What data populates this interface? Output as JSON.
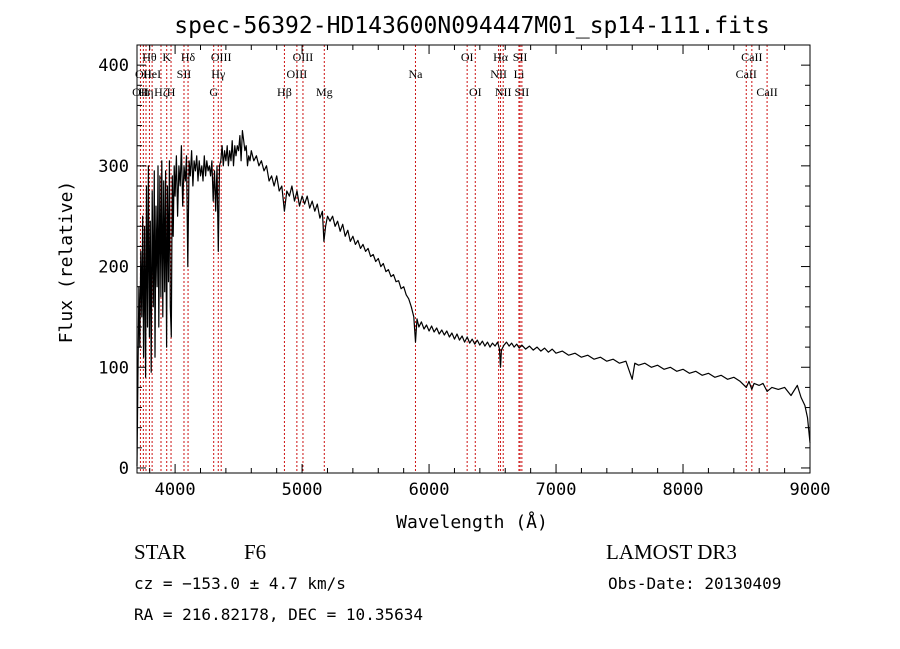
{
  "chart_data": {
    "type": "line",
    "title": "spec-56392-HD143600N094447M01_sp14-111.fits",
    "xlabel": "Wavelength (Å)",
    "ylabel": "Flux (relative)",
    "xlim": [
      3700,
      9000
    ],
    "ylim": [
      -5,
      420
    ],
    "xticks": [
      4000,
      5000,
      6000,
      7000,
      8000,
      9000
    ],
    "yticks": [
      0,
      100,
      200,
      300,
      400
    ],
    "grid": false,
    "series": [
      {
        "name": "flux",
        "points": [
          [
            3700,
            2
          ],
          [
            3705,
            60
          ],
          [
            3715,
            180
          ],
          [
            3722,
            120
          ],
          [
            3730,
            215
          ],
          [
            3738,
            150
          ],
          [
            3745,
            250
          ],
          [
            3752,
            110
          ],
          [
            3760,
            240
          ],
          [
            3768,
            90
          ],
          [
            3775,
            280
          ],
          [
            3783,
            140
          ],
          [
            3790,
            300
          ],
          [
            3798,
            130
          ],
          [
            3805,
            245
          ],
          [
            3812,
            95
          ],
          [
            3820,
            275
          ],
          [
            3828,
            160
          ],
          [
            3836,
            295
          ],
          [
            3842,
            110
          ],
          [
            3850,
            260
          ],
          [
            3858,
            180
          ],
          [
            3865,
            300
          ],
          [
            3872,
            140
          ],
          [
            3880,
            290
          ],
          [
            3888,
            170
          ],
          [
            3895,
            305
          ],
          [
            3903,
            150
          ],
          [
            3910,
            285
          ],
          [
            3918,
            175
          ],
          [
            3925,
            295
          ],
          [
            3933,
            120
          ],
          [
            3940,
            280
          ],
          [
            3948,
            185
          ],
          [
            3955,
            305
          ],
          [
            3962,
            160
          ],
          [
            3970,
            130
          ],
          [
            3978,
            290
          ],
          [
            3985,
            230
          ],
          [
            3993,
            300
          ],
          [
            4000,
            270
          ],
          [
            4010,
            310
          ],
          [
            4020,
            250
          ],
          [
            4030,
            300
          ],
          [
            4040,
            280
          ],
          [
            4050,
            320
          ],
          [
            4060,
            260
          ],
          [
            4070,
            300
          ],
          [
            4080,
            285
          ],
          [
            4090,
            310
          ],
          [
            4100,
            200
          ],
          [
            4110,
            305
          ],
          [
            4120,
            290
          ],
          [
            4130,
            315
          ],
          [
            4140,
            280
          ],
          [
            4150,
            305
          ],
          [
            4160,
            295
          ],
          [
            4170,
            310
          ],
          [
            4180,
            285
          ],
          [
            4190,
            305
          ],
          [
            4200,
            290
          ],
          [
            4210,
            300
          ],
          [
            4220,
            285
          ],
          [
            4230,
            310
          ],
          [
            4240,
            290
          ],
          [
            4250,
            305
          ],
          [
            4260,
            295
          ],
          [
            4270,
            300
          ],
          [
            4280,
            290
          ],
          [
            4290,
            305
          ],
          [
            4300,
            265
          ],
          [
            4310,
            295
          ],
          [
            4320,
            255
          ],
          [
            4330,
            300
          ],
          [
            4340,
            215
          ],
          [
            4350,
            300
          ],
          [
            4360,
            305
          ],
          [
            4370,
            320
          ],
          [
            4380,
            300
          ],
          [
            4390,
            315
          ],
          [
            4400,
            305
          ],
          [
            4410,
            320
          ],
          [
            4420,
            300
          ],
          [
            4430,
            315
          ],
          [
            4440,
            305
          ],
          [
            4450,
            325
          ],
          [
            4460,
            300
          ],
          [
            4470,
            320
          ],
          [
            4480,
            310
          ],
          [
            4490,
            320
          ],
          [
            4500,
            315
          ],
          [
            4510,
            330
          ],
          [
            4520,
            305
          ],
          [
            4530,
            335
          ],
          [
            4540,
            325
          ],
          [
            4550,
            315
          ],
          [
            4560,
            320
          ],
          [
            4570,
            300
          ],
          [
            4580,
            310
          ],
          [
            4590,
            305
          ],
          [
            4600,
            315
          ],
          [
            4620,
            305
          ],
          [
            4640,
            310
          ],
          [
            4660,
            300
          ],
          [
            4680,
            305
          ],
          [
            4700,
            295
          ],
          [
            4720,
            300
          ],
          [
            4740,
            285
          ],
          [
            4760,
            290
          ],
          [
            4780,
            280
          ],
          [
            4800,
            290
          ],
          [
            4820,
            275
          ],
          [
            4840,
            280
          ],
          [
            4861,
            255
          ],
          [
            4880,
            275
          ],
          [
            4900,
            270
          ],
          [
            4920,
            280
          ],
          [
            4940,
            265
          ],
          [
            4960,
            275
          ],
          [
            4980,
            260
          ],
          [
            5000,
            270
          ],
          [
            5020,
            262
          ],
          [
            5040,
            270
          ],
          [
            5060,
            258
          ],
          [
            5080,
            265
          ],
          [
            5100,
            255
          ],
          [
            5120,
            262
          ],
          [
            5140,
            248
          ],
          [
            5160,
            255
          ],
          [
            5172,
            225
          ],
          [
            5185,
            240
          ],
          [
            5200,
            250
          ],
          [
            5220,
            245
          ],
          [
            5240,
            250
          ],
          [
            5260,
            240
          ],
          [
            5280,
            245
          ],
          [
            5300,
            235
          ],
          [
            5320,
            242
          ],
          [
            5340,
            230
          ],
          [
            5360,
            236
          ],
          [
            5380,
            225
          ],
          [
            5400,
            230
          ],
          [
            5420,
            222
          ],
          [
            5440,
            226
          ],
          [
            5460,
            218
          ],
          [
            5480,
            222
          ],
          [
            5500,
            215
          ],
          [
            5520,
            218
          ],
          [
            5540,
            210
          ],
          [
            5560,
            212
          ],
          [
            5580,
            205
          ],
          [
            5600,
            208
          ],
          [
            5620,
            200
          ],
          [
            5640,
            203
          ],
          [
            5660,
            195
          ],
          [
            5680,
            197
          ],
          [
            5700,
            190
          ],
          [
            5720,
            192
          ],
          [
            5740,
            185
          ],
          [
            5760,
            186
          ],
          [
            5780,
            178
          ],
          [
            5800,
            180
          ],
          [
            5820,
            172
          ],
          [
            5840,
            168
          ],
          [
            5860,
            160
          ],
          [
            5880,
            150
          ],
          [
            5893,
            125
          ],
          [
            5905,
            148
          ],
          [
            5920,
            140
          ],
          [
            5940,
            145
          ],
          [
            5960,
            138
          ],
          [
            5980,
            142
          ],
          [
            6000,
            136
          ],
          [
            6020,
            141
          ],
          [
            6040,
            135
          ],
          [
            6060,
            139
          ],
          [
            6080,
            133
          ],
          [
            6100,
            137
          ],
          [
            6120,
            132
          ],
          [
            6140,
            136
          ],
          [
            6160,
            130
          ],
          [
            6180,
            134
          ],
          [
            6200,
            128
          ],
          [
            6220,
            133
          ],
          [
            6240,
            127
          ],
          [
            6260,
            131
          ],
          [
            6280,
            125
          ],
          [
            6300,
            130
          ],
          [
            6320,
            124
          ],
          [
            6340,
            128
          ],
          [
            6360,
            123
          ],
          [
            6380,
            127
          ],
          [
            6400,
            122
          ],
          [
            6420,
            126
          ],
          [
            6440,
            121
          ],
          [
            6460,
            125
          ],
          [
            6480,
            120
          ],
          [
            6500,
            124
          ],
          [
            6520,
            121
          ],
          [
            6540,
            125
          ],
          [
            6555,
            118
          ],
          [
            6563,
            100
          ],
          [
            6570,
            117
          ],
          [
            6590,
            122
          ],
          [
            6610,
            125
          ],
          [
            6630,
            121
          ],
          [
            6650,
            124
          ],
          [
            6670,
            120
          ],
          [
            6690,
            123
          ],
          [
            6710,
            119
          ],
          [
            6730,
            122
          ],
          [
            6760,
            118
          ],
          [
            6790,
            121
          ],
          [
            6820,
            117
          ],
          [
            6850,
            120
          ],
          [
            6880,
            116
          ],
          [
            6910,
            119
          ],
          [
            6940,
            115
          ],
          [
            6970,
            118
          ],
          [
            7000,
            114
          ],
          [
            7050,
            116
          ],
          [
            7100,
            112
          ],
          [
            7150,
            114
          ],
          [
            7200,
            110
          ],
          [
            7250,
            112
          ],
          [
            7300,
            108
          ],
          [
            7350,
            110
          ],
          [
            7400,
            106
          ],
          [
            7450,
            108
          ],
          [
            7500,
            104
          ],
          [
            7550,
            106
          ],
          [
            7600,
            88
          ],
          [
            7620,
            104
          ],
          [
            7650,
            102
          ],
          [
            7700,
            104
          ],
          [
            7750,
            100
          ],
          [
            7800,
            102
          ],
          [
            7850,
            98
          ],
          [
            7900,
            100
          ],
          [
            7950,
            96
          ],
          [
            8000,
            98
          ],
          [
            8050,
            94
          ],
          [
            8100,
            96
          ],
          [
            8150,
            92
          ],
          [
            8200,
            94
          ],
          [
            8250,
            90
          ],
          [
            8300,
            92
          ],
          [
            8350,
            88
          ],
          [
            8400,
            90
          ],
          [
            8450,
            86
          ],
          [
            8498,
            80
          ],
          [
            8520,
            86
          ],
          [
            8542,
            78
          ],
          [
            8560,
            84
          ],
          [
            8600,
            82
          ],
          [
            8630,
            84
          ],
          [
            8662,
            76
          ],
          [
            8700,
            80
          ],
          [
            8750,
            78
          ],
          [
            8800,
            80
          ],
          [
            8850,
            72
          ],
          [
            8900,
            82
          ],
          [
            8930,
            70
          ],
          [
            8960,
            62
          ],
          [
            8980,
            50
          ],
          [
            9000,
            25
          ]
        ]
      }
    ],
    "line_colors": {
      "spectrum": "#000000",
      "reference": "#cc1111"
    },
    "reference_lines": [
      {
        "wavelength": 3727,
        "label": "OII",
        "row": 3
      },
      {
        "wavelength": 3750,
        "label": "OII",
        "row": 2
      },
      {
        "wavelength": 3771,
        "label": "Hη",
        "row": 3
      },
      {
        "wavelength": 3798,
        "label": "Hθ",
        "row": 1
      },
      {
        "wavelength": 3819,
        "label": "HeI",
        "row": 2
      },
      {
        "wavelength": 3889,
        "label": "Hζ",
        "row": 3
      },
      {
        "wavelength": 3934,
        "label": "K",
        "row": 1
      },
      {
        "wavelength": 3968,
        "label": "H",
        "row": 3
      },
      {
        "wavelength": 4070,
        "label": "SII",
        "row": 2
      },
      {
        "wavelength": 4102,
        "label": "Hδ",
        "row": 1
      },
      {
        "wavelength": 4304,
        "label": "G",
        "row": 3
      },
      {
        "wavelength": 4340,
        "label": "Hγ",
        "row": 2
      },
      {
        "wavelength": 4363,
        "label": "OIII",
        "row": 1
      },
      {
        "wavelength": 4861,
        "label": "Hβ",
        "row": 3
      },
      {
        "wavelength": 4959,
        "label": "OIII",
        "row": 2
      },
      {
        "wavelength": 5007,
        "label": "OIII",
        "row": 1
      },
      {
        "wavelength": 5175,
        "label": "Mg",
        "row": 3
      },
      {
        "wavelength": 5893,
        "label": "Na",
        "row": 2
      },
      {
        "wavelength": 6300,
        "label": "OI",
        "row": 1
      },
      {
        "wavelength": 6364,
        "label": "OI",
        "row": 3
      },
      {
        "wavelength": 6548,
        "label": "NII",
        "row": 2
      },
      {
        "wavelength": 6563,
        "label": "Hα",
        "row": 1
      },
      {
        "wavelength": 6584,
        "label": "NII",
        "row": 3
      },
      {
        "wavelength": 6708,
        "label": "Li",
        "row": 2
      },
      {
        "wavelength": 6717,
        "label": "SII",
        "row": 1
      },
      {
        "wavelength": 6731,
        "label": "SII",
        "row": 3
      },
      {
        "wavelength": 8498,
        "label": "CaII",
        "row": 2
      },
      {
        "wavelength": 8542,
        "label": "CaII",
        "row": 1
      },
      {
        "wavelength": 8662,
        "label": "CaII",
        "row": 3
      }
    ]
  },
  "info": {
    "class_label": "STAR",
    "subclass": "F6",
    "survey": "LAMOST DR3",
    "redshift": "cz = −153.0 ± 4.7 km/s",
    "obs_date": "Obs-Date: 20130409",
    "coords": "RA = 216.82178, DEC =  10.35634"
  }
}
